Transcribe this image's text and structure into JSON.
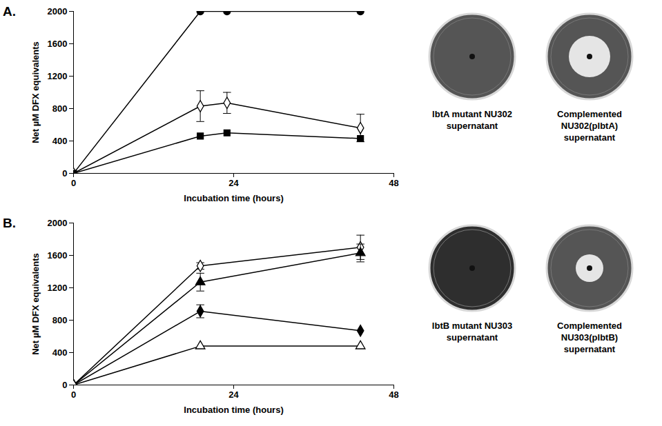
{
  "chart_data": [
    {
      "type": "line",
      "title": "A.",
      "xlabel": "Incubation time (hours)",
      "ylabel": "Net µM DFX equivalents",
      "x": [
        0,
        19,
        23,
        43
      ],
      "xlim": [
        0,
        48
      ],
      "xticks": [
        0,
        24,
        48
      ],
      "ylim": [
        0,
        2000
      ],
      "yticks": [
        0,
        400,
        800,
        1200,
        1600,
        2000
      ],
      "series": [
        {
          "color": "#000000",
          "marker": "filled_circle",
          "values": [
            0,
            2000,
            2000,
            2000
          ]
        },
        {
          "color": "#000000",
          "marker": "open_diamond",
          "values": [
            0,
            830,
            870,
            560
          ],
          "errors": [
            null,
            190,
            130,
            170
          ]
        },
        {
          "color": "#000000",
          "marker": "filled_square",
          "values": [
            0,
            460,
            500,
            430
          ]
        }
      ]
    },
    {
      "type": "line",
      "title": "B.",
      "xlabel": "Incubation time (hours)",
      "ylabel": "Net µM DFX equivalents",
      "x": [
        0,
        19,
        43
      ],
      "xlim": [
        0,
        48
      ],
      "xticks": [
        0,
        24,
        48
      ],
      "ylim": [
        0,
        2000
      ],
      "yticks": [
        0,
        400,
        800,
        1200,
        1600,
        2000
      ],
      "series": [
        {
          "color": "#000000",
          "marker": "open_diamond",
          "values": [
            0,
            1470,
            1700
          ],
          "errors": [
            null,
            40,
            150
          ]
        },
        {
          "color": "#000000",
          "marker": "filled_triangle",
          "values": [
            0,
            1270,
            1630
          ],
          "errors": [
            null,
            110,
            110
          ]
        },
        {
          "color": "#000000",
          "marker": "filled_diamond",
          "values": [
            0,
            910,
            670
          ],
          "errors": [
            null,
            80,
            null
          ]
        },
        {
          "color": "#000000",
          "marker": "open_triangle",
          "values": [
            0,
            480,
            480
          ]
        }
      ]
    }
  ],
  "plates": [
    [
      {
        "caption": [
          "lbtA mutant NU302",
          "supernatant"
        ]
      },
      {
        "caption": [
          "Complemented",
          "NU302(plbtA)",
          "supernatant"
        ]
      }
    ],
    [
      {
        "caption": [
          "lbtB mutant NU303",
          "supernatant"
        ]
      },
      {
        "caption": [
          "Complemented",
          "NU303(plbtB)",
          "supernatant"
        ]
      }
    ]
  ]
}
